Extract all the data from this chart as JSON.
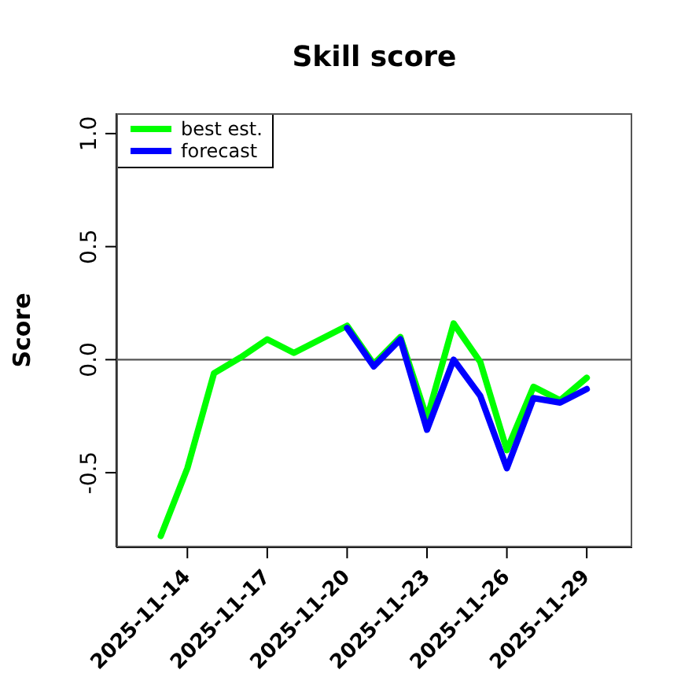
{
  "chart_data": {
    "type": "line",
    "title": "Skill score",
    "ylabel": "Score",
    "x": [
      "2025-11-13",
      "2025-11-14",
      "2025-11-15",
      "2025-11-16",
      "2025-11-17",
      "2025-11-18",
      "2025-11-19",
      "2025-11-20",
      "2025-11-21",
      "2025-11-22",
      "2025-11-23",
      "2025-11-24",
      "2025-11-25",
      "2025-11-26",
      "2025-11-27",
      "2025-11-28",
      "2025-11-29"
    ],
    "series": [
      {
        "name": "best est.",
        "color": "#00ff00",
        "values": [
          -0.78,
          -0.48,
          -0.06,
          0.01,
          0.09,
          0.03,
          0.09,
          0.15,
          -0.02,
          0.1,
          -0.26,
          0.16,
          -0.01,
          -0.4,
          -0.12,
          -0.18,
          -0.08
        ]
      },
      {
        "name": "forecast",
        "color": "#0000ff",
        "values": [
          null,
          null,
          null,
          null,
          null,
          null,
          null,
          0.14,
          -0.03,
          0.09,
          -0.31,
          0.0,
          -0.16,
          -0.48,
          -0.17,
          -0.19,
          -0.13
        ]
      }
    ],
    "xlim": [
      "2025-11-11T08:00",
      "2025-11-30T17:00"
    ],
    "xticks": [
      {
        "value": "2025-11-14",
        "label": "2025-11-14"
      },
      {
        "value": "2025-11-17",
        "label": "2025-11-17"
      },
      {
        "value": "2025-11-20",
        "label": "2025-11-20"
      },
      {
        "value": "2025-11-23",
        "label": "2025-11-23"
      },
      {
        "value": "2025-11-26",
        "label": "2025-11-26"
      },
      {
        "value": "2025-11-29",
        "label": "2025-11-29"
      }
    ],
    "ylim": [
      -0.83,
      1.09
    ],
    "yticks": [
      -0.5,
      {
        "value": 0,
        "label": "0.0"
      },
      0.5,
      {
        "value": 1,
        "label": "1.0"
      }
    ],
    "ref_lines": [
      {
        "axis": "y",
        "value": 0,
        "color": "#555555"
      }
    ],
    "legend": "top left",
    "grid": false,
    "marker": "none",
    "line_style": "solid"
  }
}
